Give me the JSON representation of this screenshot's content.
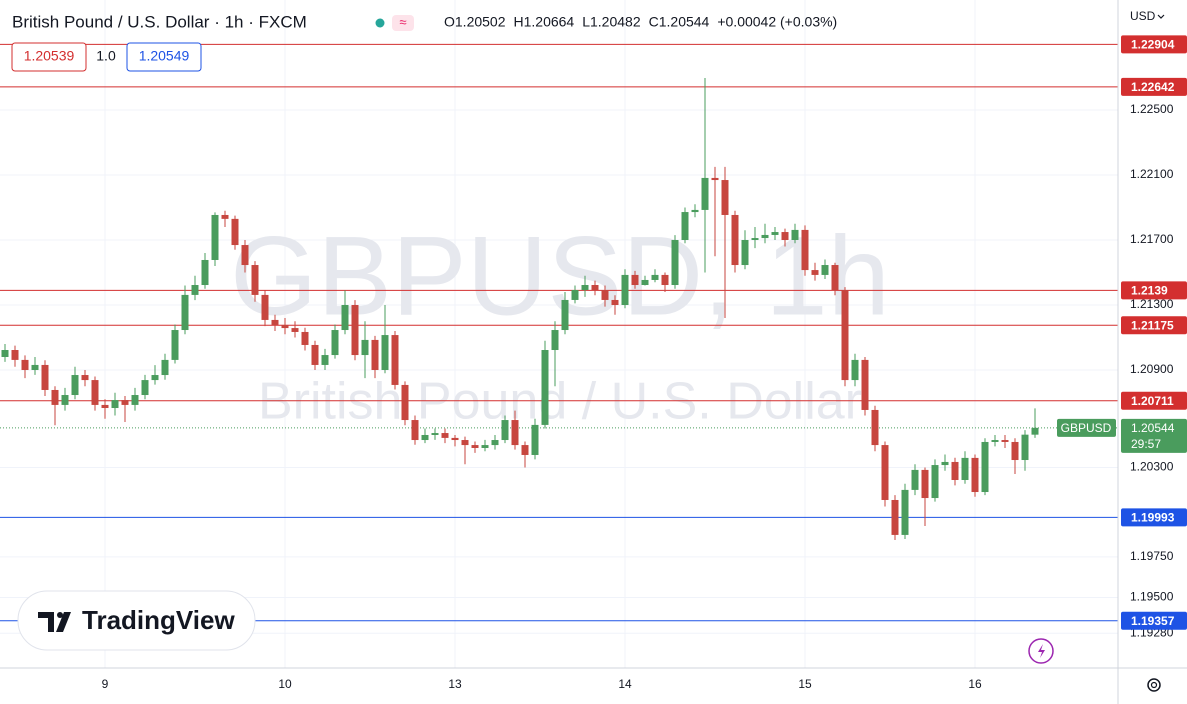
{
  "chart_data": {
    "type": "candlestick",
    "title": "British Pound / U.S. Dollar · 1h · FXCM",
    "header_values": [
      "O1.20502",
      "H1.20664",
      "L1.20482",
      "C1.20544",
      "+0.00042 (+0.03%)"
    ],
    "bid": "1.20539",
    "size": "1.0",
    "ask": "1.20549",
    "currency": "USD",
    "watermark": "GBPUSD, 1h",
    "watermark_subtitle": "British Pound / U.S. Dollar",
    "brand": "TradingView",
    "up_color": "#4a9c5d",
    "down_color": "#c7463f",
    "grid": true,
    "ylim": [
      1.19066,
      1.23177
    ],
    "yticks": [
      {
        "value": 1.225,
        "label": "1.22500"
      },
      {
        "value": 1.221,
        "label": "1.22100"
      },
      {
        "value": 1.217,
        "label": "1.21700"
      },
      {
        "value": 1.213,
        "label": "1.21300"
      },
      {
        "value": 1.209,
        "label": "1.20900"
      },
      {
        "value": 1.203,
        "label": "1.20300"
      },
      {
        "value": 1.1975,
        "label": "1.19750"
      },
      {
        "value": 1.195,
        "label": "1.19500"
      },
      {
        "value": 1.1928,
        "label": "1.19280"
      }
    ],
    "xticks": [
      {
        "value": 10,
        "label": "9"
      },
      {
        "value": 28,
        "label": "10"
      },
      {
        "value": 45,
        "label": "13"
      },
      {
        "value": 62,
        "label": "14"
      },
      {
        "value": 80,
        "label": "15"
      },
      {
        "value": 97,
        "label": "16"
      }
    ],
    "levels": [
      {
        "price": 1.22904,
        "color": "#d32f2f"
      },
      {
        "price": 1.22642,
        "color": "#d32f2f"
      },
      {
        "price": 1.2139,
        "color": "#d32f2f"
      },
      {
        "price": 1.21175,
        "color": "#d32f2f"
      },
      {
        "price": 1.20711,
        "color": "#d32f2f"
      },
      {
        "price": 1.19993,
        "color": "#1e53e5"
      },
      {
        "price": 1.19357,
        "color": "#1e53e5"
      }
    ],
    "last": {
      "symbol": "GBPUSD",
      "price": 1.20544,
      "countdown": "29:57"
    },
    "open": [
      1.2098,
      1.21023,
      1.20962,
      1.209,
      1.20931,
      1.20777,
      1.20685,
      1.20746,
      1.20869,
      1.20838,
      1.20685,
      1.20666,
      1.20715,
      1.20685,
      1.20746,
      1.20838,
      1.20869,
      1.20962,
      1.21146,
      1.21362,
      1.21423,
      1.21577,
      1.21854,
      1.2183,
      1.21669,
      1.21546,
      1.21362,
      1.21208,
      1.21177,
      1.21158,
      1.21134,
      1.21054,
      1.20931,
      1.20992,
      1.21146,
      1.213,
      1.20992,
      1.21085,
      1.209,
      1.21115,
      1.20808,
      1.20592,
      1.20469,
      1.205,
      1.20512,
      1.20482,
      1.20469,
      1.20438,
      1.2042,
      1.20438,
      1.20469,
      1.20592,
      1.20438,
      1.20377,
      1.20562,
      1.21023,
      1.21146,
      1.21331,
      1.21392,
      1.21423,
      1.21392,
      1.21331,
      1.213,
      1.21485,
      1.21423,
      1.21454,
      1.21485,
      1.21423,
      1.217,
      1.21872,
      1.21885,
      1.22082,
      1.22069,
      1.21854,
      1.21546,
      1.217,
      1.21712,
      1.21731,
      1.21749,
      1.217,
      1.21762,
      1.21515,
      1.21485,
      1.21546,
      1.21392,
      1.20838,
      1.20962,
      1.20654,
      1.20438,
      1.201,
      1.19885,
      1.20162,
      1.20285,
      1.20112,
      1.20315,
      1.20334,
      1.20223,
      1.20359,
      1.20149,
      1.20457,
      1.20469,
      1.20457,
      1.20346,
      1.20502
    ],
    "high": [
      1.2106,
      1.2105,
      1.2099,
      1.2098,
      1.2096,
      1.208,
      1.2079,
      1.2092,
      1.209,
      1.2086,
      1.2072,
      1.2076,
      1.2074,
      1.2079,
      1.2087,
      1.2093,
      1.21,
      1.2118,
      1.2142,
      1.2148,
      1.2162,
      1.2187,
      1.2188,
      1.2185,
      1.217,
      1.2157,
      1.2139,
      1.2124,
      1.2122,
      1.212,
      1.2116,
      1.2108,
      1.2103,
      1.2118,
      1.2139,
      1.2133,
      1.212,
      1.2111,
      1.213,
      1.2114,
      1.2083,
      1.2062,
      1.2054,
      1.2054,
      1.2054,
      1.205,
      1.2049,
      1.2046,
      1.2047,
      1.205,
      1.2062,
      1.2065,
      1.2046,
      1.206,
      1.2108,
      1.212,
      1.2138,
      1.2142,
      1.2148,
      1.2145,
      1.2142,
      1.2136,
      1.2152,
      1.2151,
      1.2148,
      1.2152,
      1.215,
      1.2173,
      1.219,
      1.2192,
      1.22697,
      1.2215,
      1.2215,
      1.2188,
      1.2176,
      1.2178,
      1.218,
      1.2178,
      1.2177,
      1.218,
      1.2179,
      1.2156,
      1.2158,
      1.2156,
      1.2141,
      1.21,
      1.2098,
      1.2068,
      1.2046,
      1.2013,
      1.202,
      1.2032,
      1.203,
      1.2035,
      1.2038,
      1.2036,
      1.204,
      1.2038,
      1.2048,
      1.205,
      1.205,
      1.2048,
      1.2053,
      1.20664
    ],
    "low": [
      1.2095,
      1.2092,
      1.2085,
      1.2087,
      1.2074,
      1.2056,
      1.2065,
      1.2072,
      1.208,
      1.2065,
      1.206,
      1.2062,
      1.2058,
      1.2065,
      1.2072,
      1.2081,
      1.2084,
      1.2094,
      1.2112,
      1.2133,
      1.214,
      1.2154,
      1.2178,
      1.2164,
      1.215,
      1.2132,
      1.2117,
      1.2114,
      1.2112,
      1.211,
      1.2102,
      1.209,
      1.209,
      1.2097,
      1.2112,
      1.2096,
      1.2085,
      1.2085,
      1.2088,
      1.2078,
      1.2056,
      1.2044,
      1.2045,
      1.2047,
      1.2045,
      1.2043,
      1.2032,
      1.2039,
      1.204,
      1.2041,
      1.2045,
      1.2041,
      1.203,
      1.2035,
      1.2054,
      1.208,
      1.2112,
      1.2131,
      1.2135,
      1.2136,
      1.2129,
      1.2124,
      1.2128,
      1.214,
      1.2142,
      1.2144,
      1.2138,
      1.214,
      1.2168,
      1.2184,
      1.215,
      1.216,
      1.2122,
      1.215,
      1.2152,
      1.2165,
      1.2168,
      1.217,
      1.2166,
      1.2168,
      1.2148,
      1.2145,
      1.2146,
      1.2136,
      1.208,
      1.208,
      1.2062,
      1.204,
      1.2006,
      1.19854,
      1.1986,
      1.2013,
      1.1994,
      1.2009,
      1.2028,
      1.2019,
      1.202,
      1.2012,
      1.2013,
      1.2043,
      1.2042,
      1.2026,
      1.2028,
      1.20482
    ],
    "close": [
      1.21023,
      1.20962,
      1.209,
      1.20931,
      1.20777,
      1.20685,
      1.20746,
      1.20869,
      1.20838,
      1.20685,
      1.20666,
      1.20715,
      1.20685,
      1.20746,
      1.20838,
      1.20869,
      1.20962,
      1.21146,
      1.21362,
      1.21423,
      1.21577,
      1.21854,
      1.2183,
      1.21669,
      1.21546,
      1.21362,
      1.21208,
      1.21177,
      1.21158,
      1.21134,
      1.21054,
      1.20931,
      1.20992,
      1.21146,
      1.213,
      1.20992,
      1.21085,
      1.209,
      1.21115,
      1.20808,
      1.20592,
      1.20469,
      1.205,
      1.20512,
      1.20482,
      1.20469,
      1.20438,
      1.2042,
      1.20438,
      1.20469,
      1.20592,
      1.20438,
      1.20377,
      1.20562,
      1.21023,
      1.21146,
      1.21331,
      1.21392,
      1.21423,
      1.21392,
      1.21331,
      1.213,
      1.21485,
      1.21423,
      1.21454,
      1.21485,
      1.21423,
      1.217,
      1.21872,
      1.21885,
      1.22082,
      1.22069,
      1.21854,
      1.21546,
      1.217,
      1.21712,
      1.21731,
      1.21749,
      1.217,
      1.21762,
      1.21515,
      1.21485,
      1.21546,
      1.21392,
      1.20838,
      1.20962,
      1.20654,
      1.20438,
      1.201,
      1.19885,
      1.20162,
      1.20285,
      1.20112,
      1.20315,
      1.20334,
      1.20223,
      1.20359,
      1.20149,
      1.20457,
      1.20469,
      1.20457,
      1.20346,
      1.20502,
      1.20544
    ]
  }
}
